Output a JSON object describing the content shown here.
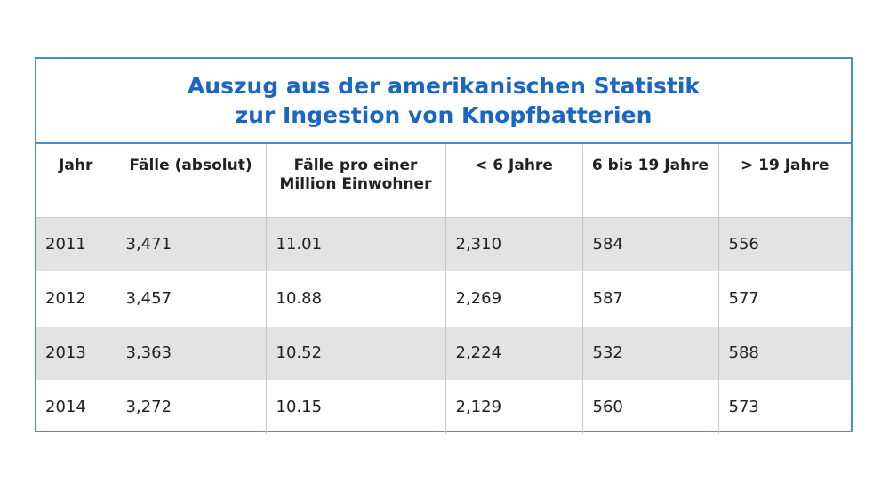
{
  "title": {
    "line1": "Auszug aus der amerikanischen Statistik",
    "line2": "zur Ingestion von Knopfbatterien"
  },
  "table": {
    "headers": [
      "Jahr",
      "Fälle (absolut)",
      "Fälle pro einer Million Einwohner",
      "< 6 Jahre",
      "6 bis 19 Jahre",
      "> 19 Jahre"
    ],
    "rows": [
      [
        "2011",
        "3,471",
        "11.01",
        "2,310",
        "584",
        "556"
      ],
      [
        "2012",
        "3,457",
        "10.88",
        "2,269",
        "587",
        "577"
      ],
      [
        "2013",
        "3,363",
        "10.52",
        "2,224",
        "532",
        "588"
      ],
      [
        "2014",
        "3,272",
        "10.15",
        "2,129",
        "560",
        "573"
      ]
    ]
  },
  "colors": {
    "title": "#1a66c2",
    "border": "#4a90c8",
    "row_shade": "#e3e3e3"
  }
}
